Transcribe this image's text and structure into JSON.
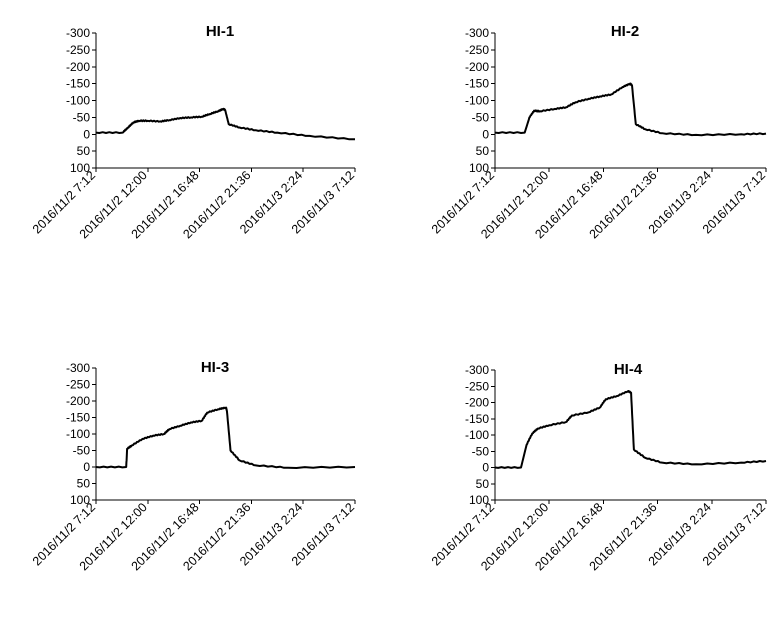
{
  "chart_data": [
    {
      "type": "line",
      "title": "HI-1",
      "y_ticks": [
        "-300",
        "-250",
        "-200",
        "-150",
        "-100",
        "-50",
        "0",
        "50",
        "100"
      ],
      "x_ticks": [
        "2016/11/2 7:12",
        "2016/11/2 12:00",
        "2016/11/2 16:48",
        "2016/11/2 21:36",
        "2016/11/3 2:24",
        "2016/11/3 7:12"
      ],
      "ylim": [
        -300,
        100
      ],
      "y_axis_reversed": true,
      "xlim": [
        "2016-11-02 07:12",
        "2016-11-03 07:12"
      ],
      "series": [
        {
          "x": [
            "2016-11-02 07:12",
            "2016-11-02 09:40",
            "2016-11-02 10:10",
            "2016-11-02 10:40",
            "2016-11-02 11:10",
            "2016-11-02 12:00",
            "2016-11-02 13:10",
            "2016-11-02 14:00",
            "2016-11-02 15:00",
            "2016-11-02 16:00",
            "2016-11-02 17:00",
            "2016-11-02 17:45",
            "2016-11-02 18:30",
            "2016-11-02 19:00",
            "2016-11-02 19:10",
            "2016-11-02 19:30",
            "2016-11-02 20:30",
            "2016-11-02 22:00",
            "2016-11-03 00:00",
            "2016-11-03 03:00",
            "2016-11-03 07:12"
          ],
          "y": [
            -5,
            -5,
            -20,
            -35,
            -40,
            -40,
            -38,
            -42,
            -48,
            -50,
            -52,
            -60,
            -68,
            -75,
            -72,
            -30,
            -20,
            -12,
            -5,
            5,
            15
          ]
        }
      ]
    },
    {
      "type": "line",
      "title": "HI-2",
      "y_ticks": [
        "-300",
        "-250",
        "-200",
        "-150",
        "-100",
        "-50",
        "0",
        "50",
        "100"
      ],
      "x_ticks": [
        "2016/11/2 7:12",
        "2016/11/2 12:00",
        "2016/11/2 16:48",
        "2016/11/2 21:36",
        "2016/11/3 2:24",
        "2016/11/3 7:12"
      ],
      "ylim": [
        -300,
        100
      ],
      "y_axis_reversed": true,
      "xlim": [
        "2016-11-02 07:12",
        "2016-11-03 07:12"
      ],
      "series": [
        {
          "x": [
            "2016-11-02 07:12",
            "2016-11-02 09:50",
            "2016-11-02 10:15",
            "2016-11-02 10:40",
            "2016-11-02 11:10",
            "2016-11-02 12:30",
            "2016-11-02 13:30",
            "2016-11-02 14:20",
            "2016-11-02 15:30",
            "2016-11-02 16:30",
            "2016-11-02 17:30",
            "2016-11-02 18:30",
            "2016-11-02 19:10",
            "2016-11-02 19:20",
            "2016-11-02 19:40",
            "2016-11-02 20:30",
            "2016-11-02 22:00",
            "2016-11-03 01:00",
            "2016-11-03 05:00",
            "2016-11-03 07:12"
          ],
          "y": [
            -5,
            -5,
            -50,
            -70,
            -68,
            -75,
            -80,
            -95,
            -105,
            -112,
            -118,
            -140,
            -150,
            -145,
            -30,
            -15,
            -3,
            2,
            0,
            -2
          ]
        }
      ]
    },
    {
      "type": "line",
      "title": "HI-3",
      "y_ticks": [
        "-300",
        "-250",
        "-200",
        "-150",
        "-100",
        "-50",
        "0",
        "50",
        "100"
      ],
      "x_ticks": [
        "2016/11/2 7:12",
        "2016/11/2 12:00",
        "2016/11/2 16:48",
        "2016/11/2 21:36",
        "2016/11/3 2:24",
        "2016/11/3 7:12"
      ],
      "ylim": [
        -300,
        100
      ],
      "y_axis_reversed": true,
      "xlim": [
        "2016-11-02 07:12",
        "2016-11-03 07:12"
      ],
      "series": [
        {
          "x": [
            "2016-11-02 07:12",
            "2016-11-02 10:00",
            "2016-11-02 10:05",
            "2016-11-02 10:30",
            "2016-11-02 11:30",
            "2016-11-02 12:30",
            "2016-11-02 13:30",
            "2016-11-02 14:00",
            "2016-11-02 15:00",
            "2016-11-02 16:00",
            "2016-11-02 17:00",
            "2016-11-02 17:30",
            "2016-11-02 18:30",
            "2016-11-02 19:15",
            "2016-11-02 19:20",
            "2016-11-02 19:40",
            "2016-11-02 20:30",
            "2016-11-02 22:00",
            "2016-11-03 01:00",
            "2016-11-03 07:12"
          ],
          "y": [
            0,
            0,
            -55,
            -65,
            -85,
            -95,
            -100,
            -115,
            -125,
            -135,
            -140,
            -165,
            -175,
            -180,
            -170,
            -50,
            -20,
            -5,
            2,
            0
          ]
        }
      ]
    },
    {
      "type": "line",
      "title": "HI-4",
      "y_ticks": [
        "-300",
        "-250",
        "-200",
        "-150",
        "-100",
        "-50",
        "0",
        "50",
        "100"
      ],
      "x_ticks": [
        "2016/11/2 7:12",
        "2016/11/2 12:00",
        "2016/11/2 16:48",
        "2016/11/2 21:36",
        "2016/11/3 2:24",
        "2016/11/3 7:12"
      ],
      "ylim": [
        -300,
        100
      ],
      "y_axis_reversed": true,
      "xlim": [
        "2016-11-02 07:12",
        "2016-11-03 07:12"
      ],
      "series": [
        {
          "x": [
            "2016-11-02 07:12",
            "2016-11-02 09:30",
            "2016-11-02 10:00",
            "2016-11-02 10:30",
            "2016-11-02 11:00",
            "2016-11-02 12:00",
            "2016-11-02 13:30",
            "2016-11-02 14:00",
            "2016-11-02 15:30",
            "2016-11-02 16:30",
            "2016-11-02 17:00",
            "2016-11-02 18:00",
            "2016-11-02 19:00",
            "2016-11-02 19:15",
            "2016-11-02 19:30",
            "2016-11-02 20:30",
            "2016-11-02 22:00",
            "2016-11-03 01:00",
            "2016-11-03 05:00",
            "2016-11-03 07:12"
          ],
          "y": [
            0,
            0,
            -70,
            -105,
            -120,
            -130,
            -140,
            -160,
            -170,
            -185,
            -210,
            -220,
            -235,
            -230,
            -55,
            -30,
            -15,
            -10,
            -15,
            -20
          ]
        }
      ]
    }
  ]
}
